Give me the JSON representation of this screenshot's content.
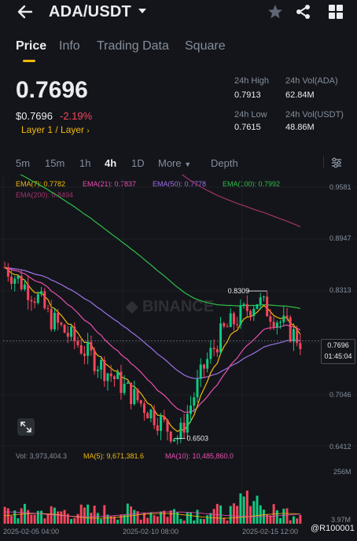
{
  "header": {
    "pair": "ADA/USDT"
  },
  "tabs": [
    "Price",
    "Info",
    "Trading Data",
    "Square"
  ],
  "price": {
    "last": "0.7696",
    "usd": "$0.7696",
    "change": "-2.19%",
    "tag": "Layer 1 / Layer"
  },
  "stats": {
    "high_label": "24h High",
    "high": "0.7913",
    "low_label": "24h Low",
    "low": "0.7615",
    "vol_ada_label": "24h Vol(ADA)",
    "vol_ada": "62.84M",
    "vol_usdt_label": "24h Vol(USDT)",
    "vol_usdt": "48.86M"
  },
  "intervals": [
    "5m",
    "15m",
    "1h",
    "4h",
    "1D",
    "More",
    "Depth"
  ],
  "ema": {
    "ema7": "EMA(7): 0.7782",
    "ema21": "EMA(21): 0.7837",
    "ema50": "EMA(50): 0.7778",
    "ema100": "EMA(100): 0.7992",
    "ema200": "EMA(200): 0.8494"
  },
  "y_axis": [
    "0.9581",
    "0.8947",
    "0.8313",
    "0.7696",
    "0.7046",
    "0.6412"
  ],
  "annotations": {
    "high": "0.8309",
    "low": "0.6503",
    "countdown": "01:45:04"
  },
  "volume": {
    "vol": "Vol: 3,973,404.3",
    "ma5": "MA(5): 9,671,381.6",
    "ma10": "MA(10): 10,485,860.0",
    "max_label": "256M",
    "min_label": "3.97M"
  },
  "x_axis": [
    "2025-02-05 04:00",
    "2025-02-10 08:00",
    "2025-02-15 12:00"
  ],
  "watermark": "@R100001",
  "colors": {
    "up": "#0ecb81",
    "down": "#f6465d",
    "accent": "#f0b90b",
    "ema7": "#f0b90b",
    "ema21": "#e84faf",
    "ema50": "#9d72e8",
    "ema100": "#2fbf4a",
    "ema200": "#a0336b"
  },
  "chart_data": {
    "type": "candlestick",
    "ohlc_close_trend": [
      0.86,
      0.85,
      0.84,
      0.83,
      0.82,
      0.8,
      0.79,
      0.78,
      0.77,
      0.76,
      0.75,
      0.74,
      0.73,
      0.72,
      0.71,
      0.7,
      0.69,
      0.68,
      0.67,
      0.66,
      0.65,
      0.68,
      0.71,
      0.74,
      0.76,
      0.78,
      0.79,
      0.8,
      0.81,
      0.82,
      0.81,
      0.8,
      0.79,
      0.78,
      0.77
    ],
    "high": 0.8309,
    "low": 0.6503,
    "ylim": [
      0.6412,
      0.9581
    ]
  }
}
